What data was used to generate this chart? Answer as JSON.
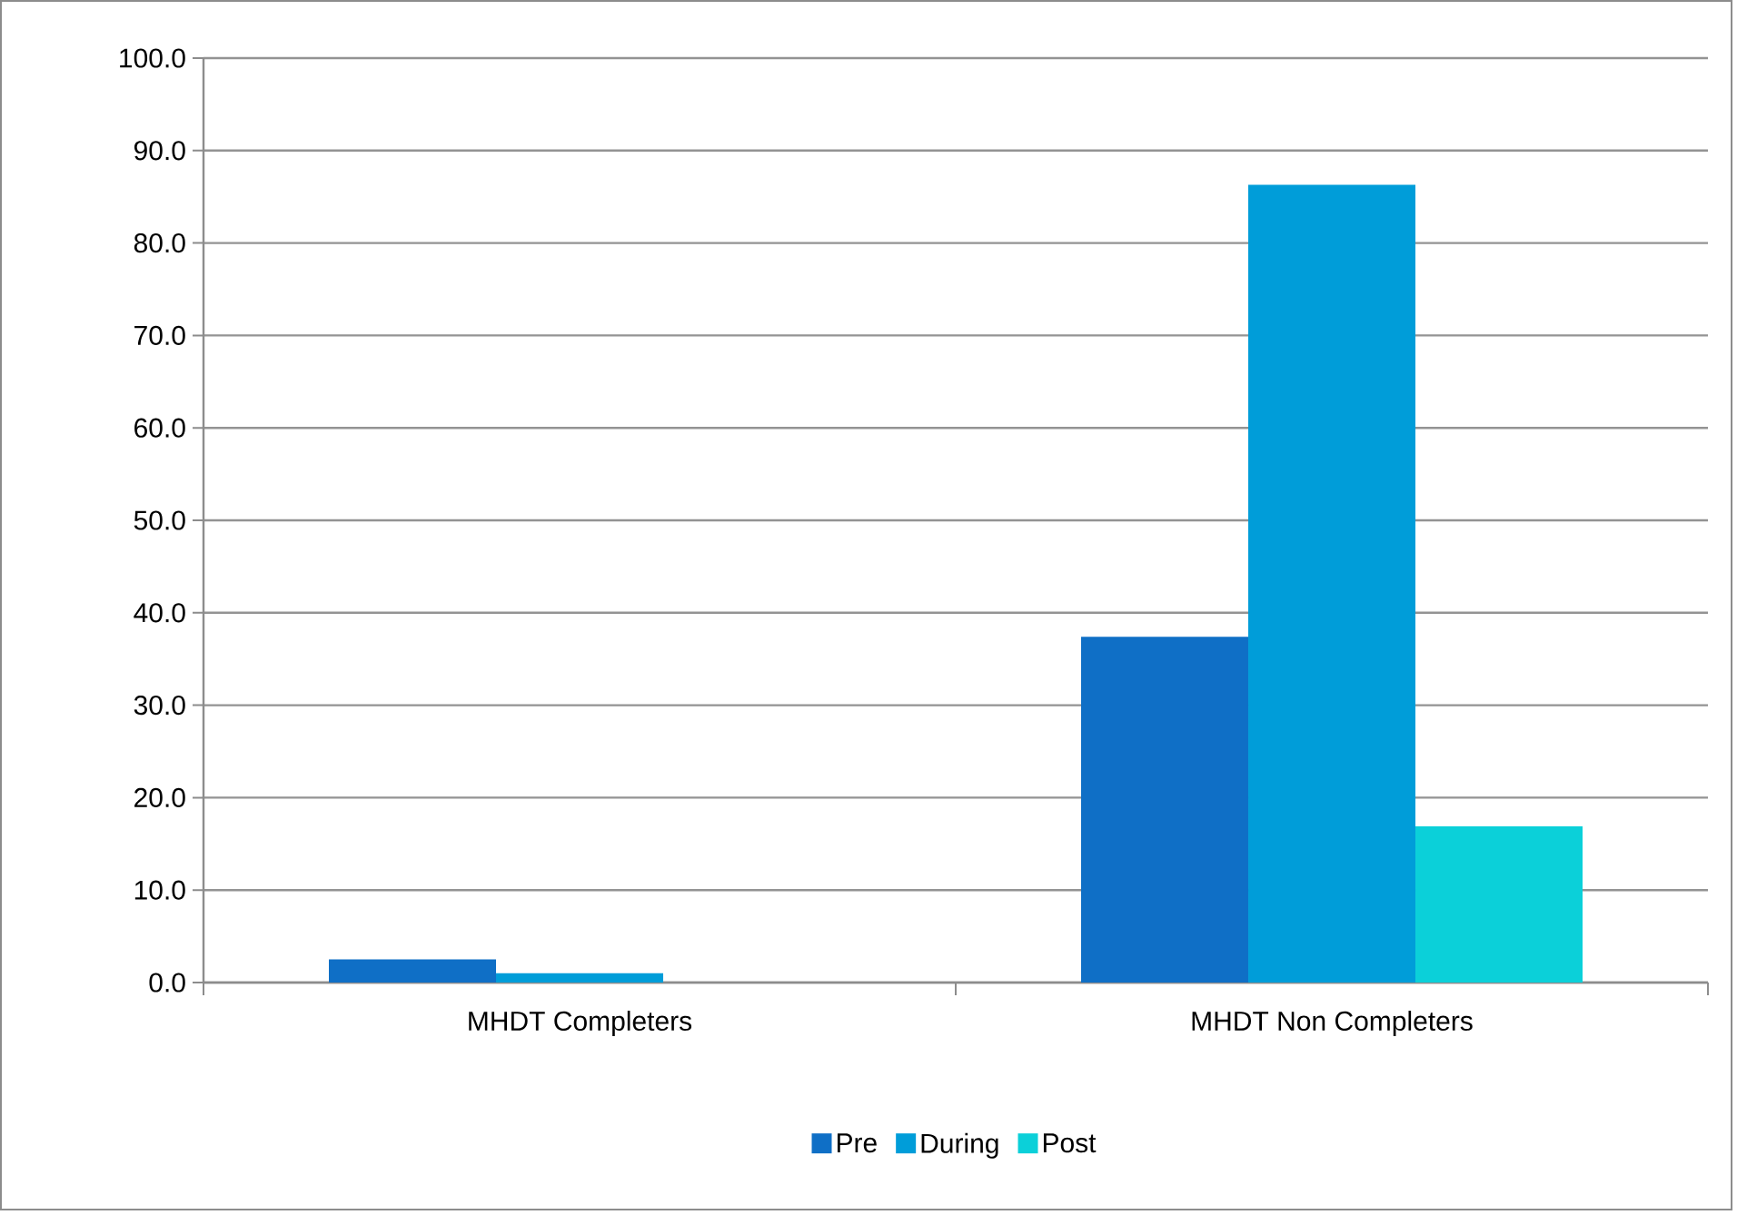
{
  "chart_data": {
    "type": "bar",
    "categories": [
      "MHDT Completers",
      "MHDT Non Completers"
    ],
    "series": [
      {
        "name": "Pre",
        "color": "#0f6fc6",
        "values": [
          2.5,
          37.4
        ]
      },
      {
        "name": "During",
        "color": "#009dd9",
        "values": [
          1.0,
          86.3
        ]
      },
      {
        "name": "Post",
        "color": "#0bd0d9",
        "values": [
          0,
          16.9
        ]
      }
    ],
    "ylim": [
      0,
      100
    ],
    "yticks": [
      {
        "value": 0,
        "label": "0.0"
      },
      {
        "value": 10,
        "label": "10.0"
      },
      {
        "value": 20,
        "label": "20.0"
      },
      {
        "value": 30,
        "label": "30.0"
      },
      {
        "value": 40,
        "label": "40.0"
      },
      {
        "value": 50,
        "label": "50.0"
      },
      {
        "value": 60,
        "label": "60.0"
      },
      {
        "value": 70,
        "label": "70.0"
      },
      {
        "value": 80,
        "label": "80.0"
      },
      {
        "value": 90,
        "label": "90.0"
      },
      {
        "value": 100,
        "label": "100.0"
      }
    ],
    "grid": "y",
    "legend": "bottom"
  }
}
